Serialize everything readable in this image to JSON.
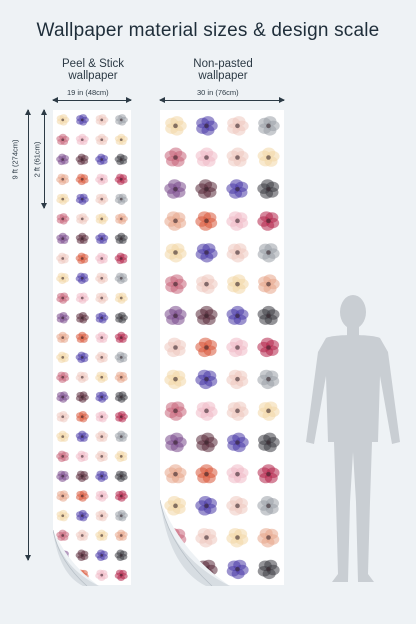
{
  "title": "Wallpaper material sizes & design scale",
  "panels": {
    "peel": {
      "label_line1": "Peel & Stick",
      "label_line2": "wallpaper",
      "width_label": "19 in (48cm)"
    },
    "nonpasted": {
      "label_line1": "Non-pasted",
      "label_line2": "wallpaper",
      "width_label": "30 in (76cm)"
    }
  },
  "heights": {
    "full": "9 ft (274cm)",
    "repeat": "2 ft (61cm)"
  },
  "colors": {
    "background": "#eef2f5",
    "text": "#23323d",
    "silhouette": "#c9ced3"
  },
  "flower_palette": [
    "#f3d7a6",
    "#4b3aa8",
    "#efc9c0",
    "#9aa0a8",
    "#7a4a8c",
    "#c9657a",
    "#e8a58a",
    "#5a2a3a",
    "#d9573a",
    "#b5254a",
    "#f0b9c7",
    "#3c3c44"
  ]
}
